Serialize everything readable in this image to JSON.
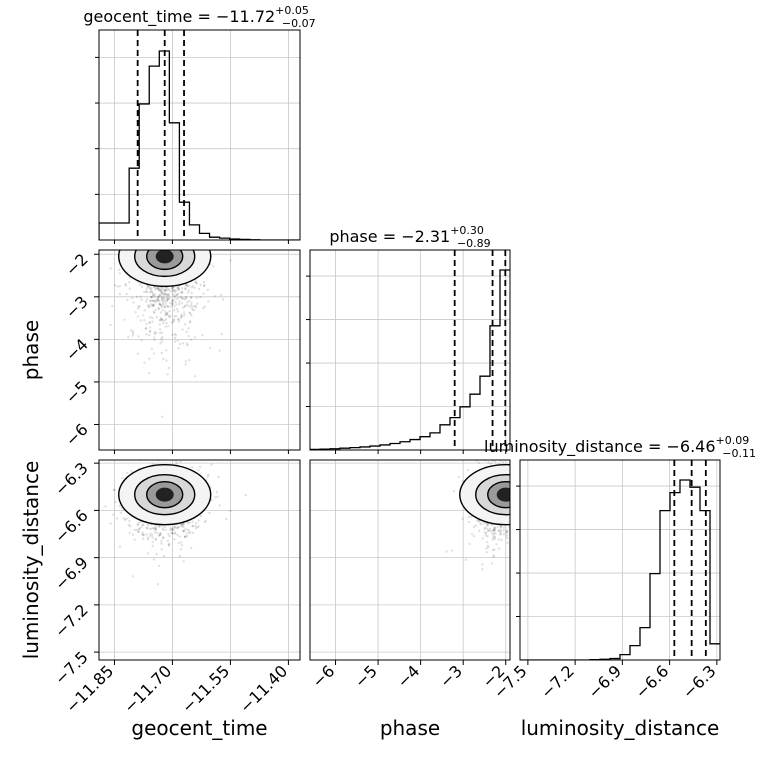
{
  "chart_data": {
    "type": "corner",
    "parameters": [
      "geocent_time",
      "phase",
      "luminosity_distance"
    ],
    "axis_labels": {
      "geocent_time": "geocent_time",
      "phase": "phase",
      "luminosity_distance": "luminosity_distance"
    },
    "ranges": {
      "geocent_time": [
        -11.89,
        -11.37
      ],
      "phase": [
        -6.6,
        -1.9
      ],
      "luminosity_distance": [
        -7.55,
        -6.28
      ]
    },
    "ticks": {
      "geocent_time": {
        "values": [
          -11.85,
          -11.7,
          -11.55,
          -11.4
        ],
        "labels": [
          "−11.85",
          "−11.70",
          "−11.55",
          "−11.40"
        ]
      },
      "phase": {
        "values": [
          -6,
          -5,
          -4,
          -3,
          -2
        ],
        "labels": [
          "−6",
          "−5",
          "−4",
          "−3",
          "−2"
        ]
      },
      "luminosity_distance": {
        "values": [
          -7.5,
          -7.2,
          -6.9,
          -6.6,
          -6.3
        ],
        "labels": [
          "−7.5",
          "−7.2",
          "−6.9",
          "−6.6",
          "−6.3"
        ]
      }
    },
    "marginals": {
      "geocent_time": {
        "title": {
          "prefix": "geocent_time = −11.72",
          "plus": "+0.05",
          "minus": "−0.07"
        },
        "quantiles": [
          -11.79,
          -11.72,
          -11.67
        ],
        "bin_edges": [
          -11.89,
          -11.864,
          -11.838,
          -11.812,
          -11.786,
          -11.76,
          -11.734,
          -11.708,
          -11.682,
          -11.656,
          -11.63,
          -11.604,
          -11.578,
          -11.552,
          -11.526,
          -11.5,
          -11.474,
          -11.448,
          -11.422,
          -11.396,
          -11.37
        ],
        "counts": [
          0.09,
          0.09,
          0.09,
          0.38,
          0.72,
          0.92,
          1.0,
          0.62,
          0.2,
          0.08,
          0.035,
          0.015,
          0.01,
          0.005,
          0.003,
          0.001,
          0,
          0,
          0,
          0
        ]
      },
      "phase": {
        "title": {
          "prefix": "phase = −2.31",
          "plus": "+0.30",
          "minus": "−0.89"
        },
        "quantiles": [
          -3.2,
          -2.31,
          -2.01
        ],
        "bin_edges": [
          -6.6,
          -6.365,
          -6.13,
          -5.895,
          -5.66,
          -5.425,
          -5.19,
          -4.955,
          -4.72,
          -4.485,
          -4.25,
          -4.015,
          -3.78,
          -3.545,
          -3.31,
          -3.075,
          -2.84,
          -2.605,
          -2.37,
          -2.135,
          -1.9
        ],
        "counts": [
          0.003,
          0.005,
          0.007,
          0.01,
          0.013,
          0.017,
          0.022,
          0.028,
          0.036,
          0.046,
          0.058,
          0.074,
          0.095,
          0.14,
          0.18,
          0.24,
          0.31,
          0.41,
          0.69,
          1.0
        ]
      },
      "luminosity_distance": {
        "title": {
          "prefix": "luminosity_distance = −6.46",
          "plus": "+0.09",
          "minus": "−0.11"
        },
        "quantiles": [
          -6.57,
          -6.46,
          -6.37
        ],
        "bin_edges": [
          -7.55,
          -7.4865,
          -7.423,
          -7.3595,
          -7.296,
          -7.2325,
          -7.169,
          -7.1055,
          -7.042,
          -6.9785,
          -6.915,
          -6.8515,
          -6.788,
          -6.7245,
          -6.661,
          -6.5975,
          -6.534,
          -6.4705,
          -6.407,
          -6.3435,
          -6.28
        ],
        "counts": [
          0,
          0,
          0,
          0,
          0,
          0,
          0,
          0.002,
          0.004,
          0.008,
          0.03,
          0.08,
          0.18,
          0.48,
          0.83,
          0.93,
          1.0,
          0.96,
          0.83,
          0.09
        ]
      }
    },
    "pairs": [
      {
        "x": "geocent_time",
        "y": "phase",
        "peak": [
          -11.72,
          -2.05
        ]
      },
      {
        "x": "geocent_time",
        "y": "luminosity_distance",
        "peak": [
          -11.72,
          -6.5
        ]
      },
      {
        "x": "phase",
        "y": "luminosity_distance",
        "peak": [
          -2.0,
          -6.5
        ]
      }
    ],
    "grid": true
  }
}
